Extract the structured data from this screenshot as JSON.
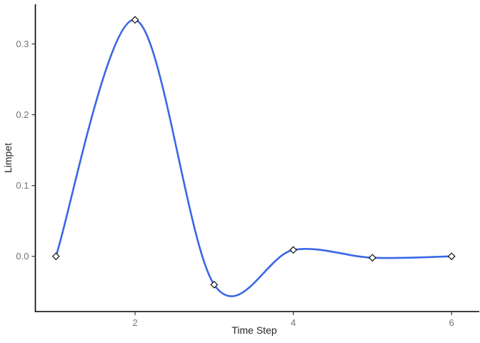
{
  "chart_data": {
    "type": "line",
    "title": "",
    "xlabel": "Time Step",
    "ylabel": "Limpet",
    "curve_style": "smooth-spline",
    "marker_style": "open-diamond",
    "grid": false,
    "legend_position": "none",
    "x": [
      1,
      2,
      3,
      4,
      5,
      6
    ],
    "series": [
      {
        "name": "Limpet",
        "values": [
          0.0,
          0.334,
          -0.04,
          0.009,
          -0.002,
          0.0
        ]
      }
    ],
    "x_ticks": [
      {
        "value": 2,
        "label": "2"
      },
      {
        "value": 4,
        "label": "4"
      },
      {
        "value": 6,
        "label": "6"
      }
    ],
    "y_ticks": [
      {
        "value": 0.0,
        "label": "0.0"
      },
      {
        "value": 0.1,
        "label": "0.1"
      },
      {
        "value": 0.2,
        "label": "0.2"
      },
      {
        "value": 0.3,
        "label": "0.3"
      }
    ],
    "xlim": [
      0.74,
      6.35
    ],
    "ylim": [
      -0.078,
      0.356
    ],
    "colors": {
      "line": "#3A67E4",
      "marker_stroke": "#000000",
      "marker_fill": "#ffffff",
      "axis": "#000000",
      "tick_mark": "#333333",
      "tick_label": "#757575",
      "axis_label": "#262626",
      "background": "#ffffff"
    }
  }
}
